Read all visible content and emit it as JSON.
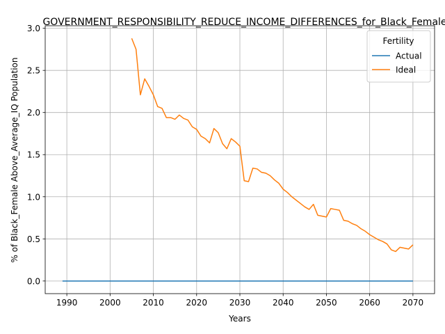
{
  "chart_data": {
    "type": "line",
    "title": "GOVERNMENT_RESPONSIBILITY_REDUCE_INCOME_DIFFERENCES_for_Black_Female",
    "xlabel": "Years",
    "ylabel": "% of Black_Female Above_Average_IQ Population",
    "xlim": [
      1985,
      2075
    ],
    "ylim": [
      -0.15,
      3.03
    ],
    "xticks": [
      1990,
      2000,
      2010,
      2020,
      2030,
      2040,
      2050,
      2060,
      2070
    ],
    "yticks": [
      0.0,
      0.5,
      1.0,
      1.5,
      2.0,
      2.5,
      3.0
    ],
    "xtick_labels": [
      "1990",
      "2000",
      "2010",
      "2020",
      "2030",
      "2040",
      "2050",
      "2060",
      "2070"
    ],
    "ytick_labels": [
      "0.0",
      "0.5",
      "1.0",
      "1.5",
      "2.0",
      "2.5",
      "3.0"
    ],
    "grid": true,
    "legend": {
      "title": "Fertility",
      "position": "top-right"
    },
    "series": [
      {
        "name": "Actual",
        "color": "#1f77b4",
        "x": [
          1989,
          2070
        ],
        "y": [
          0.0,
          0.0
        ]
      },
      {
        "name": "Ideal",
        "color": "#ff7f0e",
        "x": [
          2005,
          2006,
          2007,
          2008,
          2009,
          2010,
          2011,
          2012,
          2013,
          2014,
          2015,
          2016,
          2017,
          2018,
          2019,
          2020,
          2021,
          2022,
          2023,
          2024,
          2025,
          2026,
          2027,
          2028,
          2029,
          2030,
          2031,
          2032,
          2033,
          2034,
          2035,
          2036,
          2037,
          2038,
          2039,
          2040,
          2041,
          2042,
          2043,
          2044,
          2045,
          2046,
          2047,
          2048,
          2049,
          2050,
          2051,
          2052,
          2053,
          2054,
          2055,
          2056,
          2057,
          2058,
          2059,
          2060,
          2061,
          2062,
          2063,
          2064,
          2065,
          2066,
          2067,
          2068,
          2069,
          2070
        ],
        "y": [
          2.88,
          2.75,
          2.21,
          2.4,
          2.31,
          2.21,
          2.07,
          2.05,
          1.94,
          1.94,
          1.92,
          1.97,
          1.93,
          1.91,
          1.83,
          1.8,
          1.72,
          1.69,
          1.64,
          1.81,
          1.76,
          1.63,
          1.57,
          1.69,
          1.65,
          1.6,
          1.19,
          1.18,
          1.34,
          1.33,
          1.29,
          1.28,
          1.25,
          1.2,
          1.16,
          1.09,
          1.05,
          1.0,
          0.96,
          0.92,
          0.88,
          0.85,
          0.91,
          0.78,
          0.77,
          0.76,
          0.86,
          0.85,
          0.84,
          0.72,
          0.71,
          0.68,
          0.66,
          0.62,
          0.59,
          0.55,
          0.52,
          0.49,
          0.47,
          0.44,
          0.37,
          0.35,
          0.4,
          0.39,
          0.38,
          0.43
        ]
      }
    ]
  }
}
